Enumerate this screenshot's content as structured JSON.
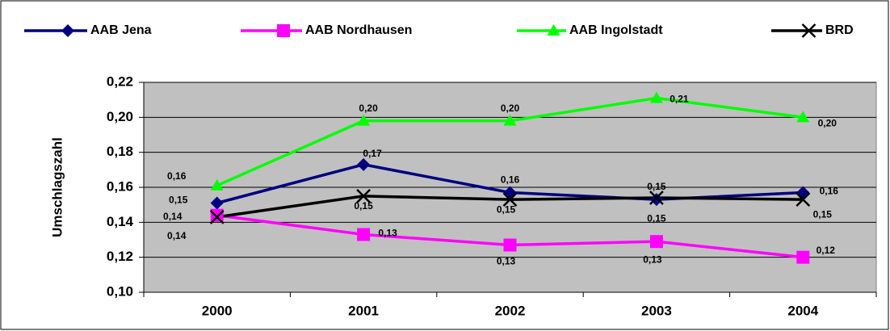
{
  "chart_data": {
    "type": "line",
    "y_label": "Umschlagszahl",
    "categories": [
      "2000",
      "2001",
      "2002",
      "2003",
      "2004"
    ],
    "series": [
      {
        "name": "AAB Jena",
        "color": "#000080",
        "marker": "diamond",
        "values": [
          0.151,
          0.173,
          0.157,
          0.153,
          0.157
        ],
        "value_labels": [
          "0,15",
          "0,17",
          "0,16",
          "0,15",
          "0,16"
        ]
      },
      {
        "name": "AAB Nordhausen",
        "color": "#ff00ff",
        "marker": "square",
        "values": [
          0.144,
          0.133,
          0.127,
          0.129,
          0.12
        ],
        "value_labels": [
          "0,14",
          "0,13",
          "0,13",
          "0,13",
          "0,12"
        ]
      },
      {
        "name": "AAB Ingolstadt",
        "color": "#00ff00",
        "marker": "triangle",
        "values": [
          0.161,
          0.198,
          0.198,
          0.211,
          0.2
        ],
        "value_labels": [
          "0,16",
          "0,20",
          "0,20",
          "0,21",
          "0,20"
        ]
      },
      {
        "name": "BRD",
        "color": "#000000",
        "marker": "x",
        "values": [
          0.143,
          0.155,
          0.153,
          0.154,
          0.153
        ],
        "value_labels": [
          "0,14",
          "0,15",
          "0,15",
          "0,15",
          "0,15"
        ]
      }
    ],
    "ylim": [
      0.1,
      0.22
    ],
    "yticks": [
      {
        "value": 0.1,
        "label": "0,10"
      },
      {
        "value": 0.12,
        "label": "0,12"
      },
      {
        "value": 0.14,
        "label": "0,14"
      },
      {
        "value": 0.16,
        "label": "0,16"
      },
      {
        "value": 0.18,
        "label": "0,18"
      },
      {
        "value": 0.2,
        "label": "0,20"
      },
      {
        "value": 0.22,
        "label": "0,22"
      }
    ],
    "grid": true,
    "legend": "top",
    "plot_background": "#c0c0c0"
  }
}
